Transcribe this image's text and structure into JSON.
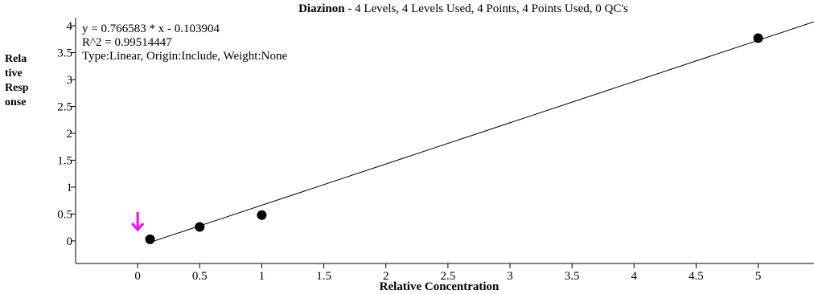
{
  "chart_data": {
    "type": "scatter",
    "title": {
      "compound": "Diazinon",
      "rest": " - 4 Levels, 4 Levels Used, 4 Points, 4 Points Used, 0 QC's"
    },
    "xlabel": "Relative Concentration",
    "ylabel_lines": [
      "Rela",
      "tive",
      "Resp",
      "onse"
    ],
    "equation_lines": [
      "y = 0.766583 * x  - 0.103904",
      "R^2 = 0.99514447",
      "Type:Linear, Origin:Include, Weight:None"
    ],
    "fit": {
      "slope": 0.766583,
      "intercept": -0.103904,
      "x_start": 0.1,
      "x_end": 5.45
    },
    "points": [
      {
        "x": 0.1,
        "y": 0.03
      },
      {
        "x": 0.5,
        "y": 0.26
      },
      {
        "x": 1.0,
        "y": 0.48
      },
      {
        "x": 5.0,
        "y": 3.77
      }
    ],
    "x_ticks": [
      "0",
      "0.5",
      "1",
      "1.5",
      "2",
      "2.5",
      "3",
      "3.5",
      "4",
      "4.5",
      "5"
    ],
    "y_ticks": [
      "0",
      "0.5",
      "1",
      "1.5",
      "2",
      "2.5",
      "3",
      "3.5",
      "4"
    ],
    "xlim": [
      -0.5,
      5.45
    ],
    "ylim": [
      -0.42,
      4.15
    ],
    "marker_arrow": {
      "x": 0.0,
      "color": "#ff00ff"
    },
    "grid": false
  }
}
